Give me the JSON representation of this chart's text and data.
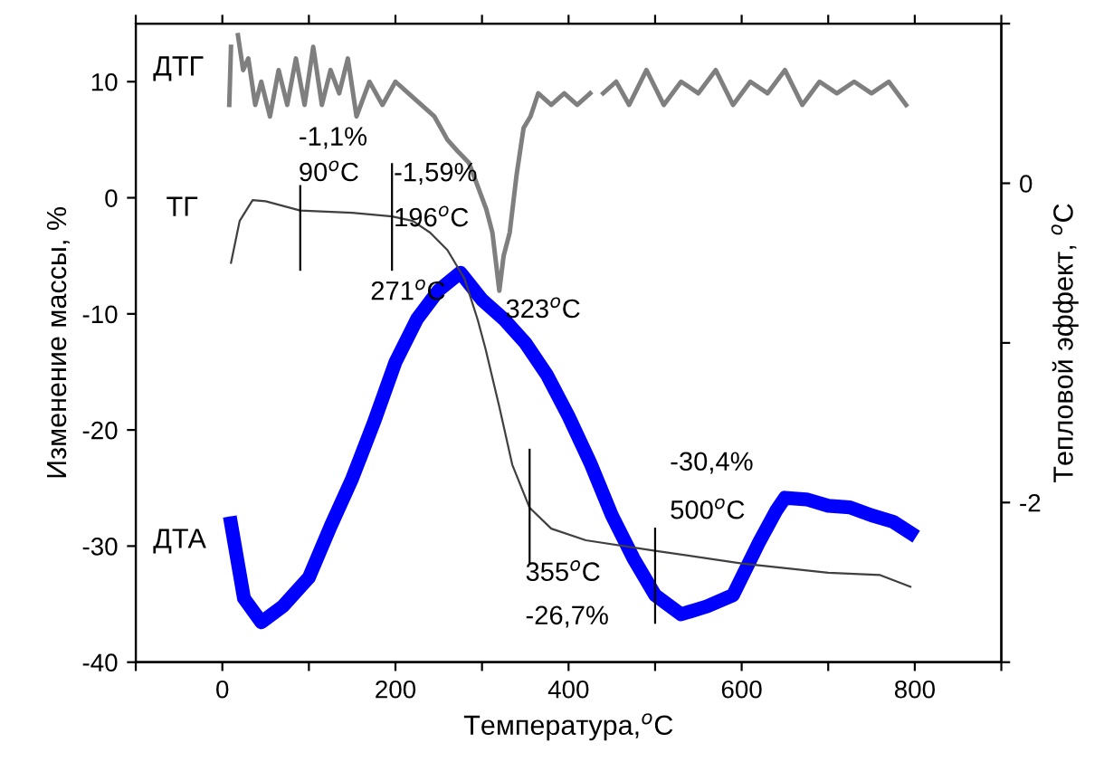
{
  "chart_data": {
    "type": "line",
    "xlabel": "Температура,$^{o}$C",
    "ylabel": "Изменение массы, %",
    "y2label": "Тепловой эффект, $^{o}$C",
    "xlim": [
      -100,
      900
    ],
    "xticks": [
      {
        "value": -100,
        "label": null
      },
      0,
      {
        "value": 100,
        "label": null
      },
      200,
      {
        "value": 300,
        "label": null
      },
      400,
      {
        "value": 500,
        "label": null
      },
      600,
      {
        "value": 700,
        "label": null
      },
      800,
      {
        "value": 900,
        "label": null
      }
    ],
    "ylim": [
      -40,
      15
    ],
    "yticks": [
      -40,
      -30,
      -20,
      -10,
      0,
      10
    ],
    "y2lim": [
      -3,
      1
    ],
    "y2ticks": [
      {
        "value": -3,
        "label": null
      },
      -2,
      {
        "value": -1,
        "label": null
      },
      0,
      {
        "value": 1,
        "label": null
      }
    ],
    "grid": false,
    "legend": false,
    "line_style": "solid",
    "marker": "none",
    "series": [
      {
        "name": "ДТГ",
        "color": "#7f7f7f",
        "x": [
          8,
          10,
          12,
          18,
          24,
          30,
          38,
          45,
          55,
          65,
          75,
          85,
          95,
          105,
          115,
          125,
          135,
          145,
          155,
          170,
          185,
          200,
          215,
          230,
          245,
          260,
          272,
          285,
          295,
          305,
          312,
          320,
          325,
          332,
          340,
          348,
          356,
          365,
          380,
          395,
          410,
          425,
          430,
          435,
          440,
          455,
          470,
          490,
          510,
          530,
          550,
          570,
          590,
          610,
          630,
          650,
          670,
          690,
          710,
          730,
          750,
          770,
          790
        ],
        "values": [
          8,
          13,
          null,
          14,
          11,
          12,
          8,
          10,
          7,
          11,
          8,
          12,
          8,
          13,
          8,
          11,
          9,
          12,
          7,
          10,
          8,
          10,
          9,
          8,
          7,
          5,
          4,
          3,
          1,
          -1,
          -3,
          -8,
          -5,
          -3,
          2,
          6,
          7,
          9,
          8,
          9,
          8,
          9,
          null,
          null,
          9,
          10,
          8,
          11,
          8,
          10,
          9,
          11,
          8,
          10,
          9,
          11,
          8,
          10,
          9,
          10,
          9,
          10,
          8
        ]
      },
      {
        "name": "ТГ",
        "color": "#404040",
        "x": [
          10,
          20,
          35,
          50,
          90,
          150,
          196,
          220,
          240,
          260,
          280,
          295,
          304,
          320,
          335,
          355,
          380,
          420,
          500,
          600,
          700,
          760,
          795
        ],
        "values": [
          -5.6,
          -2,
          -0.2,
          -0.3,
          -1.1,
          -1.3,
          -1.6,
          -2,
          -3,
          -4.5,
          -7,
          -10.5,
          -13,
          -18,
          -23,
          -26.7,
          -28.5,
          -29.5,
          -30.4,
          -31.5,
          -32.3,
          -32.5,
          -33.5
        ]
      },
      {
        "name": "ДТА",
        "color": "#0000ff",
        "axis": "y2",
        "x": [
          10,
          25,
          45,
          70,
          100,
          125,
          150,
          175,
          200,
          225,
          250,
          275,
          300,
          325,
          350,
          375,
          400,
          425,
          450,
          475,
          500,
          530,
          560,
          590,
          620,
          640,
          650,
          675,
          700,
          725,
          750,
          775,
          795
        ],
        "values": [
          -2.13,
          -2.6,
          -2.75,
          -2.65,
          -2.47,
          -2.15,
          -1.85,
          -1.5,
          -1.12,
          -0.85,
          -0.67,
          -0.56,
          -0.73,
          -0.85,
          -1.0,
          -1.2,
          -1.46,
          -1.75,
          -2.08,
          -2.35,
          -2.58,
          -2.7,
          -2.65,
          -2.58,
          -2.25,
          -2.05,
          -1.97,
          -1.98,
          -2.02,
          -2.03,
          -2.08,
          -2.12,
          -2.19
        ]
      },
      {
        "color": "#000000",
        "x": [
          90,
          90
        ],
        "values": [
          1,
          -6.2
        ]
      },
      {
        "color": "#000000",
        "x": [
          196,
          196
        ],
        "values": [
          2.9,
          -6.2
        ]
      },
      {
        "color": "#000000",
        "x": [
          355,
          355
        ],
        "values": [
          -21.7,
          -31.5
        ]
      },
      {
        "color": "#000000",
        "x": [
          500,
          500
        ],
        "values": [
          -28.5,
          -36.6
        ]
      }
    ],
    "annotations": [
      "-1,1%",
      "90$^{o}$C",
      "-1,59%",
      "196$^{o}$C",
      "271$^{o}$C",
      "323$^{o}$C",
      "355$^{o}$C",
      "-26,7%",
      "-30,4%",
      "500$^{o}$C"
    ]
  }
}
